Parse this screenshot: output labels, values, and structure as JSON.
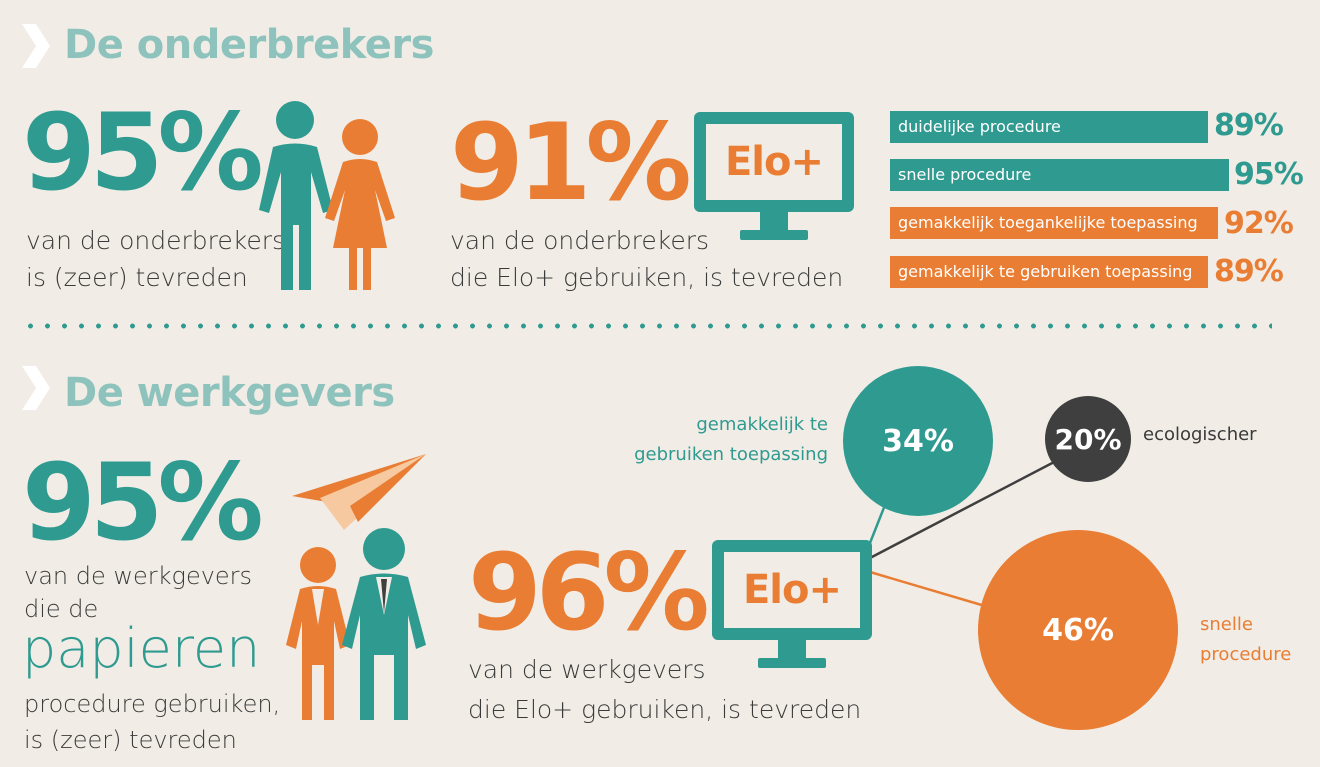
{
  "section1": {
    "title": "De onderbrekers",
    "stat1": {
      "value": "95%",
      "line1": "van de onderbrekers",
      "line2": "is (zeer) tevreden"
    },
    "stat2": {
      "value": "91%",
      "logo": "Elo+",
      "line1": "van de onderbrekers",
      "line2": "die Elo+ gebruiken, is tevreden"
    },
    "bars": [
      {
        "label": "duidelijke procedure",
        "value": "89%",
        "color": "#2f9a90"
      },
      {
        "label": "snelle procedure",
        "value": "95%",
        "color": "#2f9a90"
      },
      {
        "label": "gemakkelijk toegankelijke toepassing",
        "value": "92%",
        "color": "#e97d33"
      },
      {
        "label": "gemakkelijk te gebruiken toepassing",
        "value": "89%",
        "color": "#e97d33"
      }
    ]
  },
  "section2": {
    "title": "De werkgevers",
    "stat1": {
      "value": "95%",
      "line1": "van de werkgevers",
      "line2": "die de",
      "line3": "papieren",
      "line4": "procedure gebruiken,",
      "line5": "is (zeer) tevreden"
    },
    "stat2": {
      "value": "96%",
      "logo": "Elo+",
      "line1": "van de werkgevers",
      "line2": "die Elo+ gebruiken, is tevreden"
    },
    "circles": [
      {
        "value": "34%",
        "label_line1": "gemakkelijk te",
        "label_line2": "gebruiken toepassing",
        "color": "#2f9a90"
      },
      {
        "value": "20%",
        "label_line1": "ecologischer",
        "color": "#3f3f3f"
      },
      {
        "value": "46%",
        "label_line1": "snelle",
        "label_line2": "procedure",
        "color": "#e97d33"
      }
    ]
  },
  "colors": {
    "teal": "#2f9a90",
    "orange": "#e97d33",
    "heading": "#8dc3bc",
    "dark": "#3f3f3f",
    "background": "#f1ede6"
  }
}
